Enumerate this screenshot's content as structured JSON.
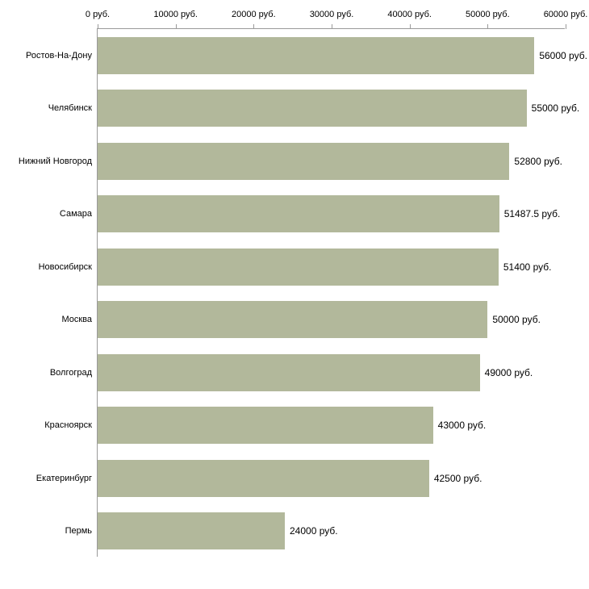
{
  "chart_data": {
    "type": "bar",
    "orientation": "horizontal",
    "title": "",
    "xlabel": "",
    "ylabel": "",
    "categories": [
      "Ростов-На-Дону",
      "Челябинск",
      "Нижний Новгород",
      "Самара",
      "Новосибирск",
      "Москва",
      "Волгоград",
      "Красноярск",
      "Екатеринбург",
      "Пермь"
    ],
    "values": [
      56000,
      55000,
      52800,
      51487.5,
      51400,
      50000,
      49000,
      43000,
      42500,
      24000
    ],
    "value_labels": [
      "56000 руб.",
      "55000 руб.",
      "52800 руб.",
      "51487.5 руб.",
      "51400 руб.",
      "50000 руб.",
      "49000 руб.",
      "43000 руб.",
      "42500 руб.",
      "24000 руб."
    ],
    "x_ticks": [
      0,
      10000,
      20000,
      30000,
      40000,
      50000,
      60000
    ],
    "x_tick_labels": [
      "0 руб.",
      "10000 руб.",
      "20000 руб.",
      "30000 руб.",
      "40000 руб.",
      "50000 руб.",
      "60000 руб."
    ],
    "xlim": [
      0,
      60000
    ],
    "grid": false,
    "legend": "none",
    "axis_position": "top-left",
    "bar_color": "#b2b89b",
    "axis_color": "#9a9a9a",
    "text_color": "#000000"
  }
}
